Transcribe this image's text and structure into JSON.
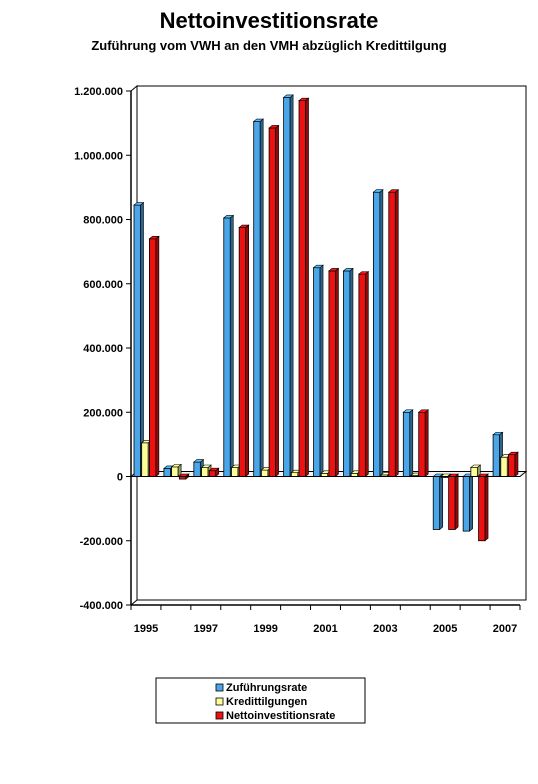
{
  "chart_data": {
    "type": "bar",
    "title": "Nettoinvestitionsrate",
    "subtitle": "Zuführung vom VWH an den VMH abzüglich Kredittilgung",
    "categories": [
      "1995",
      "1996",
      "1997",
      "1998",
      "1999",
      "2000",
      "2001",
      "2002",
      "2003",
      "2004",
      "2005",
      "2006",
      "2007"
    ],
    "x_tick_labels": [
      "1995",
      "1997",
      "1999",
      "2001",
      "2003",
      "2005",
      "2007"
    ],
    "x_tick_years": [
      1995,
      1997,
      1999,
      2001,
      2003,
      2005,
      2007
    ],
    "y_tick_labels": [
      "-400.000",
      "-200.000",
      "0",
      "200.000",
      "400.000",
      "600.000",
      "800.000",
      "1.000.000",
      "1.200.000"
    ],
    "y_tick_values": [
      -400000,
      -200000,
      0,
      200000,
      400000,
      600000,
      800000,
      1000000,
      1200000
    ],
    "ylim": [
      -400000,
      1200000
    ],
    "grid": false,
    "legend_position": "bottom",
    "series": [
      {
        "name": "Zuführungsrate",
        "color": "#4aa6e8",
        "values": [
          845000,
          25000,
          45000,
          805000,
          1105000,
          1180000,
          650000,
          640000,
          885000,
          200000,
          -165000,
          -170000,
          130000
        ]
      },
      {
        "name": "Kredittilgungen",
        "color": "#ffff99",
        "values": [
          105000,
          30000,
          28000,
          28000,
          20000,
          12000,
          10000,
          10000,
          5000,
          3000,
          0,
          28000,
          60000
        ]
      },
      {
        "name": "Nettoinvestitionsrate",
        "color": "#ee1111",
        "values": [
          740000,
          -8000,
          18000,
          775000,
          1085000,
          1170000,
          640000,
          630000,
          885000,
          200000,
          -165000,
          -200000,
          68000
        ]
      }
    ]
  }
}
